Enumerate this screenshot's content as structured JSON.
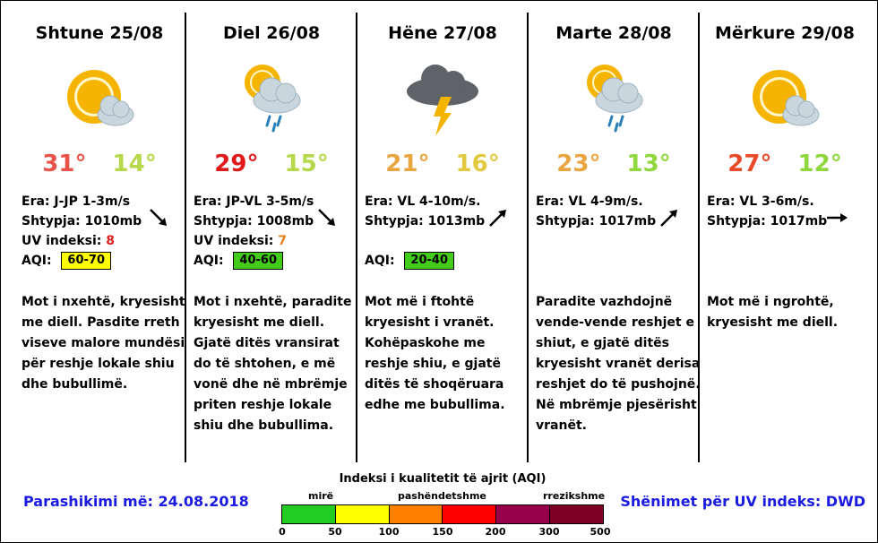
{
  "days": [
    {
      "title": "Shtune 25/08",
      "icon": "sun-cloud-icon",
      "t_max": "31°",
      "t_min": "14°",
      "t_max_color": "#e8534a",
      "t_min_color": "#b5d94a",
      "wind": "Era: J-JP 1-3m/s",
      "pressure": "Shtypja: 1010mb",
      "uv_label": "UV indeksi: ",
      "uv_value": "8",
      "uv_color": "#e02020",
      "aqi_label": "AQI: ",
      "aqi_value": "60-70",
      "aqi_color": "#ffff00",
      "wind_dir": "south-east",
      "desc": "Mot i nxehtë, kryesisht me diell.  Pasdite rreth viseve malore mundësi për reshje lokale shiu dhe bubullimë."
    },
    {
      "title": "Diel 26/08",
      "icon": "sun-rain-cloud-icon",
      "t_max": "29°",
      "t_min": "15°",
      "t_max_color": "#e01a1a",
      "t_min_color": "#b5d94a",
      "wind": "Era: JP-VL 3-5m/s",
      "pressure": "Shtypja: 1008mb",
      "uv_label": "UV indeksi: ",
      "uv_value": "7",
      "uv_color": "#e87e1a",
      "aqi_label": "AQI: ",
      "aqi_value": "40-60",
      "aqi_color": "#44cc1a",
      "wind_dir": "south-east",
      "desc": "Mot i nxehtë, paradite kryesisht me diell.  Gjatë ditës vransirat do të shtohen, e më vonë dhe në mbrëmje priten reshje lokale shiu dhe bubullima."
    },
    {
      "title": "Hëne 27/08",
      "icon": "thunderstorm-icon",
      "t_max": "21°",
      "t_min": "16°",
      "t_max_color": "#e8a540",
      "t_min_color": "#e3c940",
      "wind": "Era: VL 4-10m/s.",
      "pressure": "Shtypja: 1013mb",
      "uv_label": "",
      "uv_value": "",
      "uv_color": "#000000",
      "aqi_label": "AQI: ",
      "aqi_value": "20-40",
      "aqi_color": "#44cc1a",
      "wind_dir": "north-east",
      "desc": "Mot më i ftohtë kryesisht i vranët. Kohëpaskohe me reshje shiu, e gjatë ditës të shoqëruara edhe me bubullima."
    },
    {
      "title": "Marte 28/08",
      "icon": "sun-rain-cloud-icon",
      "t_max": "23°",
      "t_min": "13°",
      "t_max_color": "#e8a540",
      "t_min_color": "#8fd63f",
      "wind": "Era: VL 4-9m/s.",
      "pressure": "Shtypja: 1017mb",
      "uv_label": "",
      "uv_value": "",
      "uv_color": "#000000",
      "aqi_label": "",
      "aqi_value": "",
      "aqi_color": "",
      "wind_dir": "north-east",
      "desc": "Paradite vazhdojnë vende-vende reshjet e shiut, e gjatë ditës kryesisht vranët derisa reshjet do të pushojnë. Në mbrëmje pjesërisht vranët."
    },
    {
      "title": "Mërkure 29/08",
      "icon": "sun-cloud-icon",
      "t_max": "27°",
      "t_min": "12°",
      "t_max_color": "#e84a2a",
      "t_min_color": "#8fd63f",
      "wind": "Era: VL 3-6m/s.",
      "pressure": "Shtypja: 1017mb",
      "uv_label": "",
      "uv_value": "",
      "uv_color": "#000000",
      "aqi_label": "",
      "aqi_value": "",
      "aqi_color": "",
      "wind_dir": "east",
      "desc": "Mot më i ngrohtë, kryesisht me diell."
    }
  ],
  "footer": {
    "forecast_date": "Parashikimi më: 24.08.2018",
    "uv_note": "Shënimet për UV indeks: DWD"
  },
  "aqi_scale": {
    "title": "Indeksi i kualitetit të ajrit (AQI)",
    "words": [
      "mirë",
      "pashëndetshme",
      "rrezikshme"
    ],
    "ticks": [
      "0",
      "50",
      "100",
      "150",
      "200",
      "300",
      "500"
    ],
    "colors": [
      "#22cc22",
      "#ffff00",
      "#ff8000",
      "#ff0000",
      "#99004c",
      "#7e0023"
    ]
  }
}
